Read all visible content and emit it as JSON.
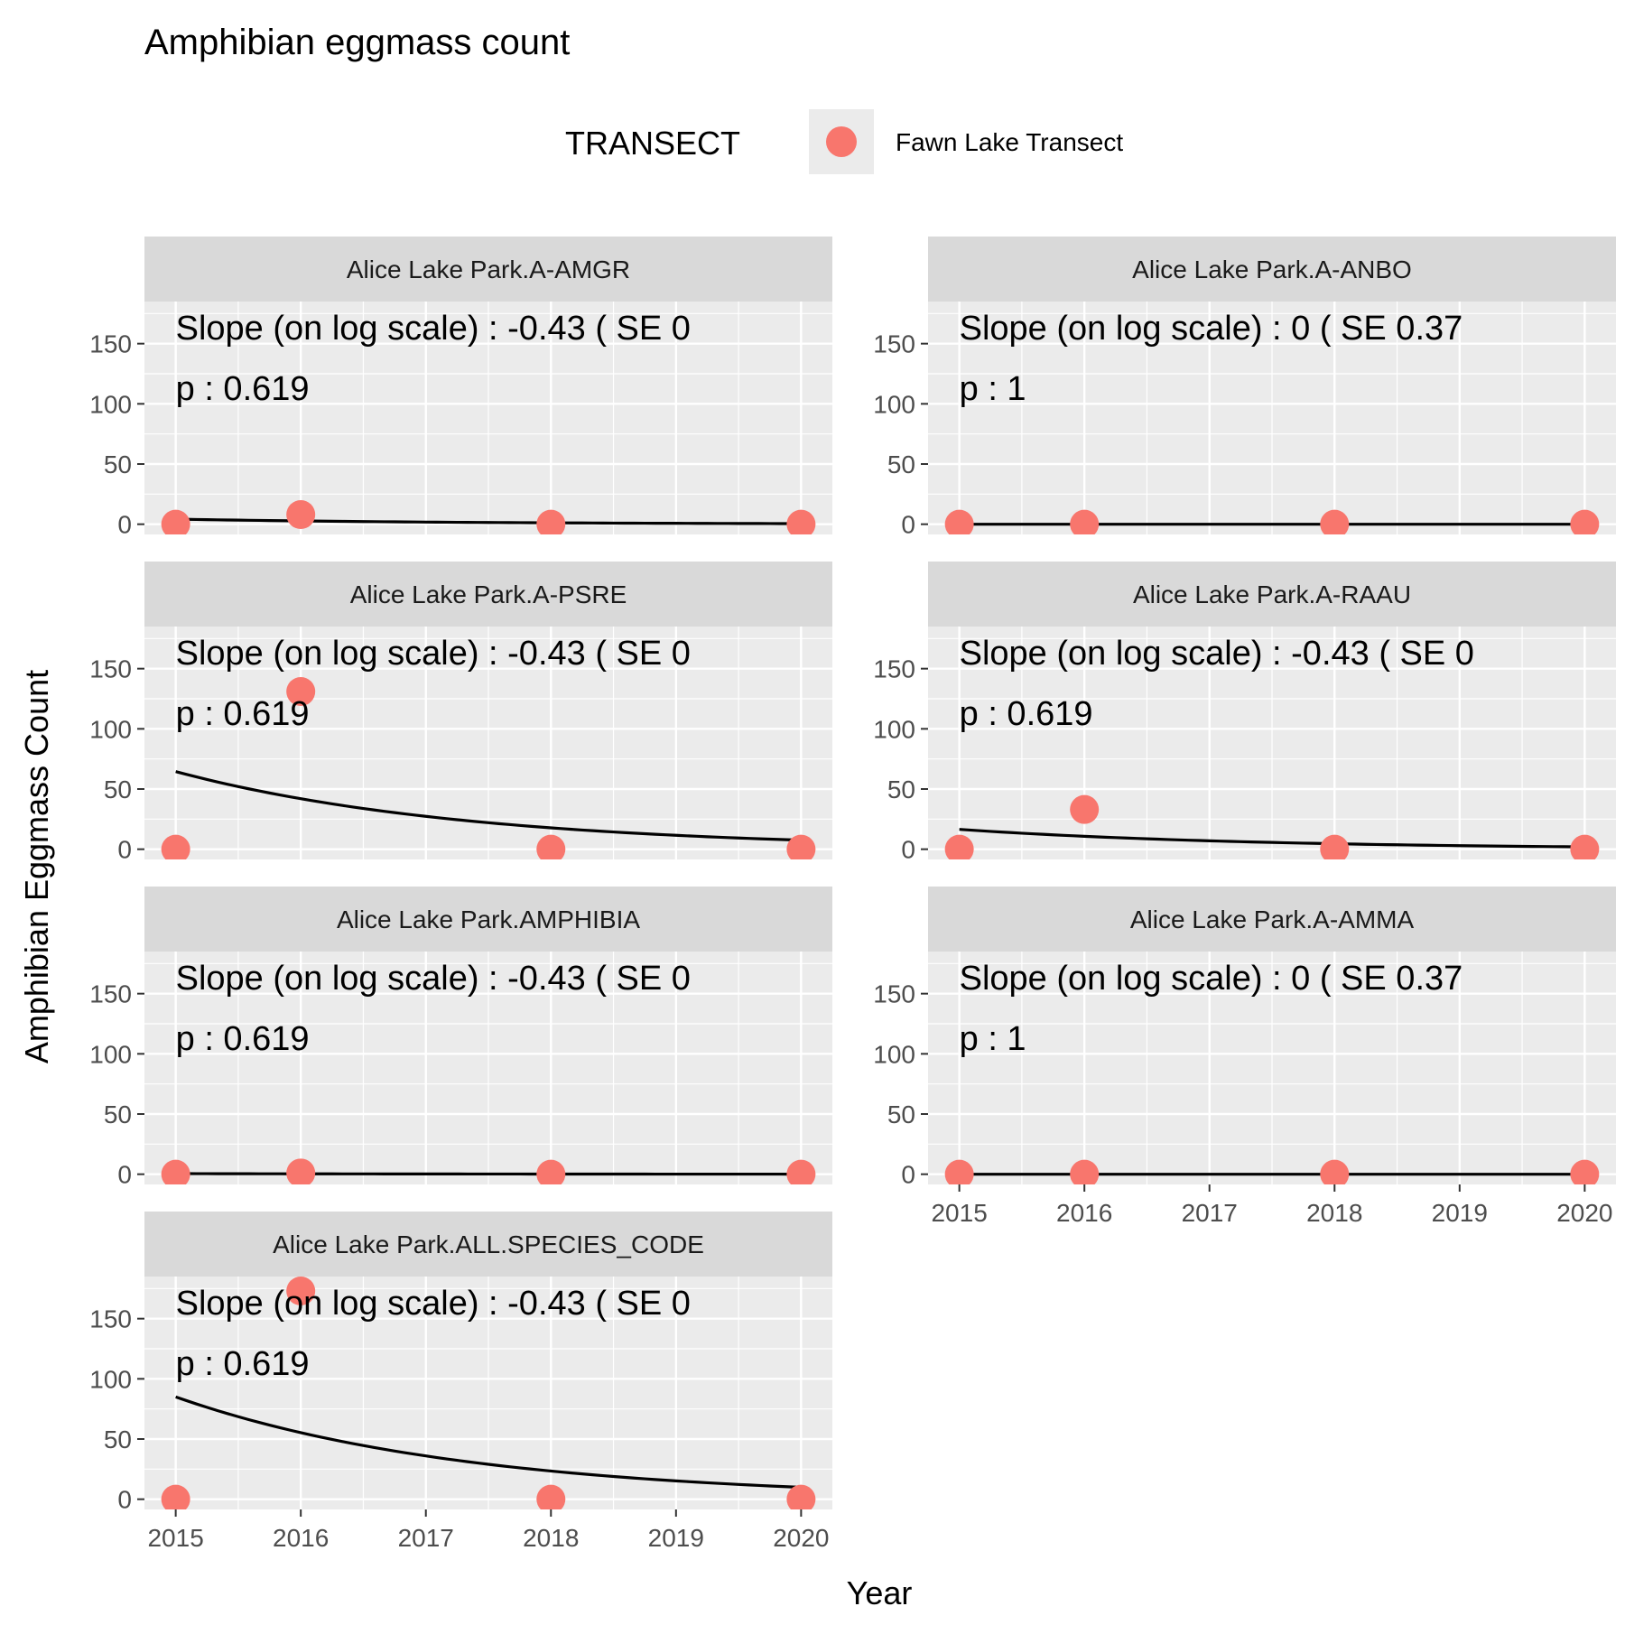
{
  "chart_data": {
    "type": "scatter",
    "title": "Amphibian eggmass count",
    "xlabel": "Year",
    "ylabel": "Amphibian Eggmass Count",
    "x_ticks": [
      "2015",
      "2016",
      "2017",
      "2018",
      "2019",
      "2020"
    ],
    "y_ticks": [
      "0",
      "50",
      "100",
      "150"
    ],
    "xlim": [
      2014.75,
      2020.25
    ],
    "ylim": [
      -8.5,
      185
    ],
    "grid": true,
    "legend": {
      "position": "top",
      "title": "TRANSECT",
      "entries": [
        {
          "label": "Fawn Lake Transect",
          "color": "#F8766D"
        }
      ]
    },
    "point_color": "#F8766D",
    "line_color": "#000000",
    "panels": [
      {
        "strip": "Alice Lake Park.A-AMGR",
        "annotation_1": "Slope (on log scale) :  -0.43  ( SE  0",
        "annotation_2": "p : 0.619",
        "points": [
          {
            "x": 2015,
            "y": 0
          },
          {
            "x": 2016,
            "y": 8
          },
          {
            "x": 2018,
            "y": 0
          },
          {
            "x": 2020,
            "y": 0
          }
        ],
        "fit": {
          "start": 4.2,
          "slope": -0.43
        }
      },
      {
        "strip": "Alice Lake Park.A-ANBO",
        "annotation_1": "Slope (on log scale) :  0  ( SE  0.37",
        "annotation_2": "p : 1",
        "points": [
          {
            "x": 2015,
            "y": 0
          },
          {
            "x": 2016,
            "y": 0
          },
          {
            "x": 2018,
            "y": 0
          },
          {
            "x": 2020,
            "y": 0
          }
        ],
        "fit": {
          "start": 0,
          "slope": 0
        }
      },
      {
        "strip": "Alice Lake Park.A-PSRE",
        "annotation_1": "Slope (on log scale) :  -0.43  ( SE  0",
        "annotation_2": "p : 0.619",
        "points": [
          {
            "x": 2015,
            "y": 0
          },
          {
            "x": 2016,
            "y": 131
          },
          {
            "x": 2018,
            "y": 0
          },
          {
            "x": 2020,
            "y": 0
          }
        ],
        "fit": {
          "start": 64.5,
          "slope": -0.43
        }
      },
      {
        "strip": "Alice Lake Park.A-RAAU",
        "annotation_1": "Slope (on log scale) :  -0.43  ( SE  0",
        "annotation_2": "p : 0.619",
        "points": [
          {
            "x": 2015,
            "y": 0
          },
          {
            "x": 2016,
            "y": 33
          },
          {
            "x": 2018,
            "y": 0
          },
          {
            "x": 2020,
            "y": 0
          }
        ],
        "fit": {
          "start": 16.5,
          "slope": -0.43
        }
      },
      {
        "strip": "Alice Lake Park.AMPHIBIA",
        "annotation_1": "Slope (on log scale) :  -0.43  ( SE  0",
        "annotation_2": "p : 0.619",
        "points": [
          {
            "x": 2015,
            "y": 0
          },
          {
            "x": 2016,
            "y": 1
          },
          {
            "x": 2018,
            "y": 0
          },
          {
            "x": 2020,
            "y": 0
          }
        ],
        "fit": {
          "start": 0.5,
          "slope": -0.43
        }
      },
      {
        "strip": "Alice Lake Park.A-AMMA",
        "annotation_1": "Slope (on log scale) :  0  ( SE  0.37",
        "annotation_2": "p : 1",
        "points": [
          {
            "x": 2015,
            "y": 0
          },
          {
            "x": 2016,
            "y": 0
          },
          {
            "x": 2018,
            "y": 0
          },
          {
            "x": 2020,
            "y": 0
          }
        ],
        "fit": {
          "start": 0,
          "slope": 0
        }
      },
      {
        "strip": "Alice Lake Park.ALL.SPECIES_CODE",
        "annotation_1": "Slope (on log scale) :  -0.43  ( SE  0",
        "annotation_2": "p : 0.619",
        "points": [
          {
            "x": 2015,
            "y": 0
          },
          {
            "x": 2016,
            "y": 173
          },
          {
            "x": 2018,
            "y": 0
          },
          {
            "x": 2020,
            "y": 0
          }
        ],
        "fit": {
          "start": 85,
          "slope": -0.43
        }
      }
    ]
  }
}
